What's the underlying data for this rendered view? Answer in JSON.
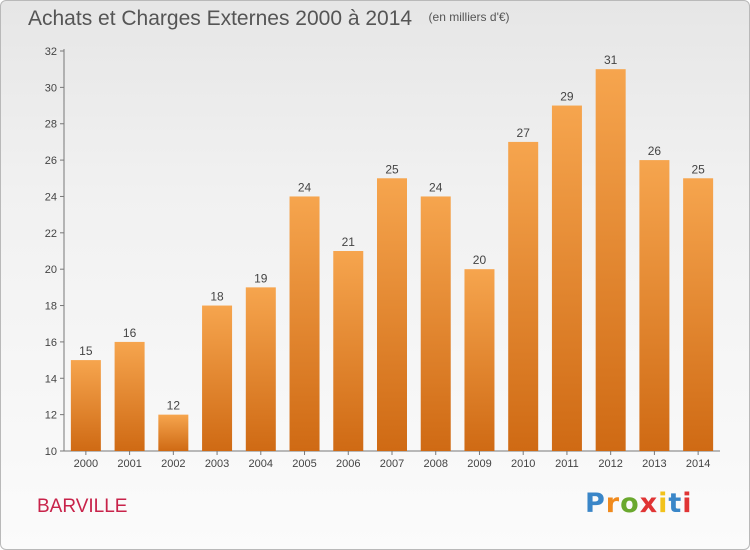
{
  "title": "Achats et Charges Externes 2000 à 2014",
  "unit": "(en milliers d'€)",
  "commune": "BARVILLE",
  "logo": {
    "letters": [
      "P",
      "r",
      "o",
      "x",
      "i",
      "t",
      "i"
    ],
    "colors": [
      "#3a86c8",
      "#f08a1d",
      "#6aa82e",
      "#e03434",
      "#f2c21b",
      "#3a86c8",
      "#e03434"
    ]
  },
  "colors": {
    "bar_top": "#f6a54e",
    "bar_bottom": "#cf6a14",
    "title": "#555555",
    "commune": "#c8234a"
  },
  "chart_data": {
    "type": "bar",
    "categories": [
      "2000",
      "2001",
      "2002",
      "2003",
      "2004",
      "2005",
      "2006",
      "2007",
      "2008",
      "2009",
      "2010",
      "2011",
      "2012",
      "2013",
      "2014"
    ],
    "values": [
      15,
      16,
      12,
      18,
      19,
      24,
      21,
      25,
      24,
      20,
      27,
      29,
      31,
      26,
      25
    ],
    "ylim": [
      10,
      32
    ],
    "yticks": [
      10,
      12,
      14,
      16,
      18,
      20,
      22,
      24,
      26,
      28,
      30,
      32
    ],
    "grid": false,
    "legend": "none"
  }
}
